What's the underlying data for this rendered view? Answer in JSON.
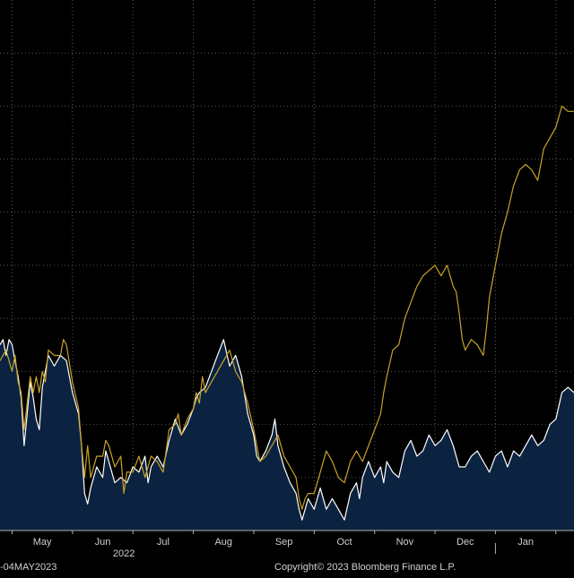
{
  "footer": {
    "date_range": "-04MAY2023",
    "copyright": "Copyright© 2023 Bloomberg Finance L.P."
  },
  "colors": {
    "background": "#000000",
    "grid": "#5a5a5a",
    "area_fill": "#0b2340",
    "white_series": "#ffffff",
    "gold_series": "#c9a227",
    "axis_text": "#d0d0d0",
    "axis_line": "#b0b0b0"
  },
  "chart_data": {
    "type": "line",
    "title": "",
    "xlabel": "",
    "ylabel": "",
    "x_tick_labels": [
      {
        "label": "May",
        "x": 1.5
      },
      {
        "label": "Jun",
        "x": 2.5
      },
      {
        "label": "Jul",
        "x": 3.5
      },
      {
        "label": "Aug",
        "x": 4.5
      },
      {
        "label": "Sep",
        "x": 5.5
      },
      {
        "label": "Oct",
        "x": 6.5
      },
      {
        "label": "Nov",
        "x": 7.5
      },
      {
        "label": "Dec",
        "x": 8.5
      },
      {
        "label": "Jan",
        "x": 9.5
      }
    ],
    "year_labels": [
      {
        "label": "2022",
        "x": 2.85
      }
    ],
    "x_range": [
      0.8,
      10.3
    ],
    "y_range": [
      0,
      10
    ],
    "grid": true,
    "legend": "none",
    "series": [
      {
        "color_key": "gold_series",
        "fill": false,
        "points": [
          [
            0.8,
            3.2
          ],
          [
            0.9,
            3.4
          ],
          [
            1.0,
            3.0
          ],
          [
            1.05,
            3.3
          ],
          [
            1.1,
            2.8
          ],
          [
            1.15,
            2.6
          ],
          [
            1.2,
            1.9
          ],
          [
            1.25,
            2.4
          ],
          [
            1.3,
            2.9
          ],
          [
            1.35,
            2.6
          ],
          [
            1.4,
            2.9
          ],
          [
            1.45,
            2.6
          ],
          [
            1.5,
            3.0
          ],
          [
            1.55,
            2.8
          ],
          [
            1.6,
            3.4
          ],
          [
            1.7,
            3.3
          ],
          [
            1.8,
            3.3
          ],
          [
            1.85,
            3.6
          ],
          [
            1.9,
            3.5
          ],
          [
            2.0,
            2.8
          ],
          [
            2.1,
            2.3
          ],
          [
            2.15,
            1.6
          ],
          [
            2.2,
            1.0
          ],
          [
            2.25,
            1.6
          ],
          [
            2.3,
            1.0
          ],
          [
            2.4,
            1.4
          ],
          [
            2.5,
            1.4
          ],
          [
            2.55,
            1.7
          ],
          [
            2.6,
            1.6
          ],
          [
            2.7,
            1.2
          ],
          [
            2.8,
            1.4
          ],
          [
            2.85,
            0.7
          ],
          [
            2.9,
            1.1
          ],
          [
            3.0,
            1.1
          ],
          [
            3.1,
            1.4
          ],
          [
            3.15,
            1.2
          ],
          [
            3.2,
            1.0
          ],
          [
            3.25,
            1.2
          ],
          [
            3.3,
            1.4
          ],
          [
            3.4,
            1.3
          ],
          [
            3.5,
            1.1
          ],
          [
            3.6,
            1.9
          ],
          [
            3.7,
            2.0
          ],
          [
            3.75,
            2.2
          ],
          [
            3.8,
            1.8
          ],
          [
            3.9,
            2.1
          ],
          [
            4.0,
            2.3
          ],
          [
            4.05,
            2.6
          ],
          [
            4.1,
            2.4
          ],
          [
            4.15,
            2.9
          ],
          [
            4.2,
            2.6
          ],
          [
            4.3,
            2.8
          ],
          [
            4.4,
            3.0
          ],
          [
            4.5,
            3.2
          ],
          [
            4.6,
            3.4
          ],
          [
            4.7,
            3.0
          ],
          [
            4.8,
            2.8
          ],
          [
            4.9,
            2.4
          ],
          [
            5.0,
            1.9
          ],
          [
            5.05,
            1.6
          ],
          [
            5.1,
            1.3
          ],
          [
            5.2,
            1.4
          ],
          [
            5.3,
            1.6
          ],
          [
            5.4,
            1.8
          ],
          [
            5.5,
            1.4
          ],
          [
            5.6,
            1.2
          ],
          [
            5.7,
            1.0
          ],
          [
            5.75,
            0.6
          ],
          [
            5.8,
            0.4
          ],
          [
            5.85,
            0.6
          ],
          [
            5.9,
            0.7
          ],
          [
            6.0,
            0.7
          ],
          [
            6.1,
            1.1
          ],
          [
            6.2,
            1.5
          ],
          [
            6.3,
            1.3
          ],
          [
            6.4,
            1.0
          ],
          [
            6.5,
            0.9
          ],
          [
            6.6,
            1.3
          ],
          [
            6.7,
            1.5
          ],
          [
            6.8,
            1.3
          ],
          [
            6.9,
            1.6
          ],
          [
            7.0,
            1.9
          ],
          [
            7.1,
            2.2
          ],
          [
            7.15,
            2.6
          ],
          [
            7.2,
            2.9
          ],
          [
            7.3,
            3.4
          ],
          [
            7.4,
            3.5
          ],
          [
            7.5,
            4.0
          ],
          [
            7.6,
            4.3
          ],
          [
            7.7,
            4.6
          ],
          [
            7.8,
            4.8
          ],
          [
            7.9,
            4.9
          ],
          [
            8.0,
            5.0
          ],
          [
            8.1,
            4.8
          ],
          [
            8.2,
            5.0
          ],
          [
            8.3,
            4.6
          ],
          [
            8.35,
            4.5
          ],
          [
            8.4,
            4.1
          ],
          [
            8.45,
            3.6
          ],
          [
            8.5,
            3.4
          ],
          [
            8.6,
            3.6
          ],
          [
            8.7,
            3.5
          ],
          [
            8.8,
            3.3
          ],
          [
            8.85,
            3.8
          ],
          [
            8.9,
            4.4
          ],
          [
            9.0,
            5.0
          ],
          [
            9.1,
            5.6
          ],
          [
            9.2,
            6.0
          ],
          [
            9.3,
            6.5
          ],
          [
            9.4,
            6.8
          ],
          [
            9.5,
            6.9
          ],
          [
            9.6,
            6.8
          ],
          [
            9.7,
            6.6
          ],
          [
            9.8,
            7.2
          ],
          [
            9.9,
            7.4
          ],
          [
            10.0,
            7.6
          ],
          [
            10.1,
            8.0
          ],
          [
            10.2,
            7.9
          ],
          [
            10.3,
            7.9
          ]
        ]
      },
      {
        "color_key": "white_series",
        "fill": true,
        "points": [
          [
            0.8,
            3.5
          ],
          [
            0.85,
            3.6
          ],
          [
            0.9,
            3.3
          ],
          [
            0.95,
            3.6
          ],
          [
            1.0,
            3.5
          ],
          [
            1.05,
            3.2
          ],
          [
            1.1,
            2.9
          ],
          [
            1.15,
            2.5
          ],
          [
            1.2,
            1.6
          ],
          [
            1.25,
            2.2
          ],
          [
            1.3,
            2.8
          ],
          [
            1.35,
            2.5
          ],
          [
            1.4,
            2.1
          ],
          [
            1.45,
            1.9
          ],
          [
            1.5,
            2.7
          ],
          [
            1.6,
            3.3
          ],
          [
            1.7,
            3.1
          ],
          [
            1.8,
            3.3
          ],
          [
            1.9,
            3.2
          ],
          [
            2.0,
            2.6
          ],
          [
            2.1,
            2.2
          ],
          [
            2.15,
            1.6
          ],
          [
            2.2,
            0.7
          ],
          [
            2.25,
            0.5
          ],
          [
            2.3,
            0.8
          ],
          [
            2.4,
            1.2
          ],
          [
            2.5,
            1.0
          ],
          [
            2.55,
            1.5
          ],
          [
            2.6,
            1.3
          ],
          [
            2.7,
            0.9
          ],
          [
            2.8,
            1.0
          ],
          [
            2.9,
            0.9
          ],
          [
            3.0,
            1.2
          ],
          [
            3.1,
            1.1
          ],
          [
            3.2,
            1.4
          ],
          [
            3.25,
            0.9
          ],
          [
            3.3,
            1.2
          ],
          [
            3.4,
            1.4
          ],
          [
            3.5,
            1.2
          ],
          [
            3.6,
            1.7
          ],
          [
            3.7,
            2.1
          ],
          [
            3.8,
            1.8
          ],
          [
            3.9,
            2.0
          ],
          [
            4.0,
            2.3
          ],
          [
            4.05,
            2.5
          ],
          [
            4.1,
            2.6
          ],
          [
            4.2,
            2.7
          ],
          [
            4.3,
            3.0
          ],
          [
            4.4,
            3.3
          ],
          [
            4.5,
            3.6
          ],
          [
            4.6,
            3.1
          ],
          [
            4.7,
            3.3
          ],
          [
            4.8,
            2.9
          ],
          [
            4.9,
            2.2
          ],
          [
            5.0,
            1.8
          ],
          [
            5.05,
            1.4
          ],
          [
            5.1,
            1.3
          ],
          [
            5.2,
            1.5
          ],
          [
            5.3,
            1.8
          ],
          [
            5.35,
            2.1
          ],
          [
            5.4,
            1.6
          ],
          [
            5.5,
            1.2
          ],
          [
            5.6,
            0.9
          ],
          [
            5.7,
            0.7
          ],
          [
            5.75,
            0.4
          ],
          [
            5.8,
            0.2
          ],
          [
            5.9,
            0.6
          ],
          [
            6.0,
            0.4
          ],
          [
            6.05,
            0.6
          ],
          [
            6.1,
            0.8
          ],
          [
            6.2,
            0.4
          ],
          [
            6.3,
            0.6
          ],
          [
            6.4,
            0.4
          ],
          [
            6.5,
            0.2
          ],
          [
            6.6,
            0.7
          ],
          [
            6.7,
            0.9
          ],
          [
            6.75,
            0.6
          ],
          [
            6.8,
            1.0
          ],
          [
            6.9,
            1.3
          ],
          [
            7.0,
            1.0
          ],
          [
            7.1,
            1.2
          ],
          [
            7.15,
            0.9
          ],
          [
            7.2,
            1.3
          ],
          [
            7.3,
            1.1
          ],
          [
            7.4,
            1.0
          ],
          [
            7.5,
            1.5
          ],
          [
            7.6,
            1.7
          ],
          [
            7.7,
            1.4
          ],
          [
            7.8,
            1.5
          ],
          [
            7.9,
            1.8
          ],
          [
            8.0,
            1.6
          ],
          [
            8.1,
            1.7
          ],
          [
            8.2,
            1.9
          ],
          [
            8.3,
            1.6
          ],
          [
            8.4,
            1.2
          ],
          [
            8.5,
            1.2
          ],
          [
            8.6,
            1.4
          ],
          [
            8.7,
            1.5
          ],
          [
            8.8,
            1.3
          ],
          [
            8.9,
            1.1
          ],
          [
            9.0,
            1.4
          ],
          [
            9.1,
            1.5
          ],
          [
            9.2,
            1.2
          ],
          [
            9.3,
            1.5
          ],
          [
            9.4,
            1.4
          ],
          [
            9.5,
            1.6
          ],
          [
            9.6,
            1.8
          ],
          [
            9.7,
            1.6
          ],
          [
            9.8,
            1.7
          ],
          [
            9.9,
            2.0
          ],
          [
            10.0,
            2.1
          ],
          [
            10.1,
            2.6
          ],
          [
            10.2,
            2.7
          ],
          [
            10.3,
            2.6
          ]
        ]
      }
    ]
  }
}
